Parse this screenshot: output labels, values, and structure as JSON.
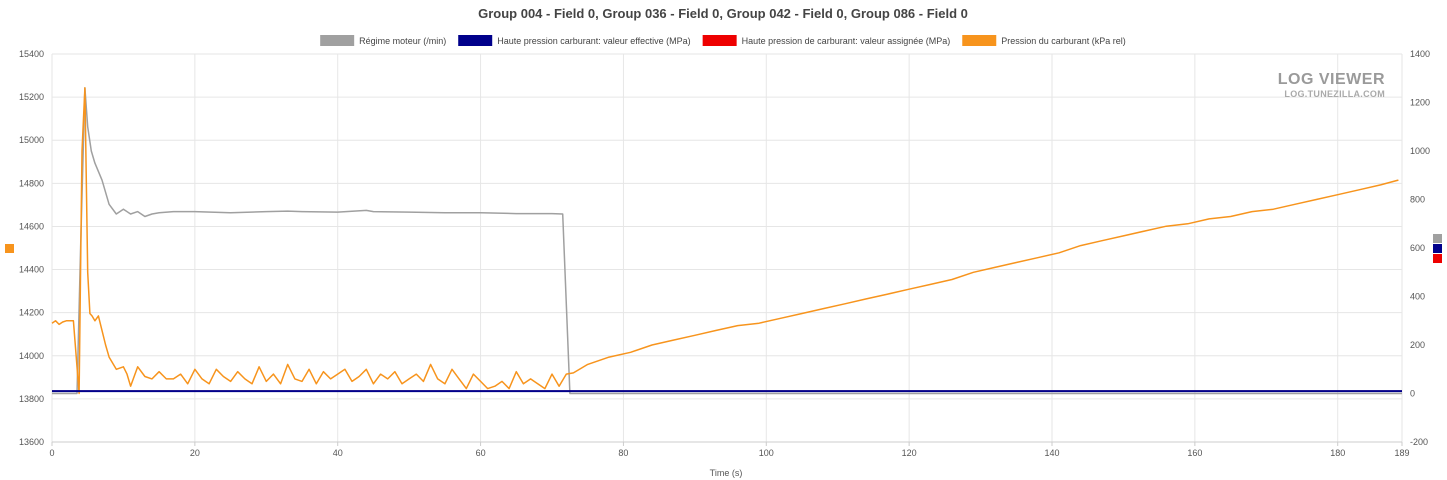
{
  "chart_data": {
    "type": "line",
    "title": "Group 004 - Field 0, Group 036 - Field 0, Group 042 - Field 0, Group 086 - Field 0",
    "xlabel": "Time (s)",
    "xlim": [
      0,
      189
    ],
    "x_ticks": [
      0,
      20,
      40,
      60,
      80,
      100,
      120,
      140,
      160,
      180,
      189
    ],
    "y_left": {
      "lim": [
        13600,
        15400
      ],
      "ticks": [
        13600,
        13800,
        14000,
        14200,
        14400,
        14600,
        14800,
        15000,
        15200,
        15400
      ]
    },
    "y_right": {
      "lim": [
        -200,
        1400
      ],
      "ticks": [
        -200,
        0,
        200,
        400,
        600,
        800,
        1000,
        1200,
        1400
      ]
    },
    "legend_position": "top-center",
    "grid": true,
    "watermark": {
      "line1": "LOG VIEWER",
      "line2": "LOG.TUNEZILLA.COM"
    },
    "series": [
      {
        "name": "Régime moteur (/min)",
        "color": "#a0a0a0",
        "axis": "right",
        "x": [
          0,
          3.5,
          4.0,
          4.6,
          5.0,
          5.5,
          6.0,
          7.0,
          8.0,
          9.0,
          10.0,
          11.0,
          12.0,
          13.0,
          14.0,
          15.0,
          17.0,
          20.0,
          25.0,
          30.0,
          33.0,
          35.0,
          40.0,
          44.0,
          45.0,
          50.0,
          55.0,
          60.0,
          65.0,
          70.0,
          71.5,
          72.5,
          80,
          100,
          120,
          140,
          160,
          180,
          189
        ],
        "values": [
          0,
          0,
          600,
          1260,
          1100,
          1000,
          950,
          880,
          780,
          740,
          760,
          740,
          750,
          730,
          740,
          745,
          750,
          750,
          745,
          750,
          752,
          750,
          748,
          755,
          750,
          748,
          745,
          745,
          742,
          742,
          740,
          0,
          0,
          0,
          0,
          0,
          0,
          0,
          0
        ]
      },
      {
        "name": "Haute pression carburant: valeur effective (MPa)",
        "color": "#00008b",
        "axis": "right",
        "x": [
          0,
          189
        ],
        "values": [
          10,
          10
        ]
      },
      {
        "name": "Haute pression de carburant: valeur assignée (MPa)",
        "color": "#ee0000",
        "axis": "right",
        "x": [
          0,
          189
        ],
        "values": [
          10,
          10
        ]
      },
      {
        "name": "Pression du carburant (kPa rel)",
        "color": "#f7941d",
        "axis": "right",
        "x": [
          0,
          0.5,
          1.0,
          1.5,
          2.0,
          3.0,
          3.8,
          4.2,
          4.6,
          5.0,
          5.3,
          5.6,
          6.0,
          6.5,
          7.0,
          7.5,
          8.0,
          9.0,
          10.0,
          10.5,
          11.0,
          12.0,
          13.0,
          14.0,
          15.0,
          16.0,
          17.0,
          18.0,
          19.0,
          20.0,
          21.0,
          22.0,
          23.0,
          24.0,
          25.0,
          26.0,
          27.0,
          28.0,
          29.0,
          30.0,
          31.0,
          32.0,
          33.0,
          34.0,
          35.0,
          36.0,
          37.0,
          38.0,
          39.0,
          40.0,
          41.0,
          42.0,
          43.0,
          44.0,
          45.0,
          46.0,
          47.0,
          48.0,
          49.0,
          50.0,
          51.0,
          52.0,
          53.0,
          54.0,
          55.0,
          56.0,
          57.0,
          58.0,
          59.0,
          60.0,
          61.0,
          62.0,
          63.0,
          64.0,
          65.0,
          66.0,
          67.0,
          68.0,
          69.0,
          70.0,
          71.0,
          72.0,
          73.0,
          75,
          78,
          81,
          84,
          87,
          90,
          93,
          96,
          99,
          102,
          105,
          108,
          111,
          114,
          117,
          120,
          123,
          126,
          129,
          132,
          135,
          138,
          141,
          144,
          147,
          150,
          153,
          156,
          159,
          162,
          165,
          168,
          171,
          174,
          177,
          180,
          183,
          186,
          188.5
        ],
        "values": [
          290,
          300,
          285,
          295,
          300,
          300,
          0,
          1000,
          1260,
          500,
          330,
          320,
          300,
          320,
          260,
          200,
          150,
          100,
          110,
          80,
          30,
          110,
          70,
          60,
          90,
          60,
          60,
          80,
          40,
          100,
          60,
          40,
          100,
          70,
          50,
          90,
          60,
          40,
          110,
          50,
          80,
          40,
          120,
          60,
          50,
          100,
          40,
          90,
          60,
          80,
          100,
          50,
          70,
          100,
          40,
          80,
          60,
          90,
          40,
          60,
          80,
          50,
          120,
          60,
          40,
          100,
          60,
          20,
          80,
          50,
          20,
          30,
          50,
          20,
          90,
          40,
          60,
          40,
          20,
          80,
          30,
          80,
          85,
          120,
          150,
          170,
          200,
          220,
          240,
          260,
          280,
          290,
          310,
          330,
          350,
          370,
          390,
          410,
          430,
          450,
          470,
          500,
          520,
          540,
          560,
          580,
          610,
          630,
          650,
          670,
          690,
          700,
          720,
          730,
          750,
          760,
          780,
          800,
          820,
          840,
          860,
          880
        ]
      }
    ]
  }
}
